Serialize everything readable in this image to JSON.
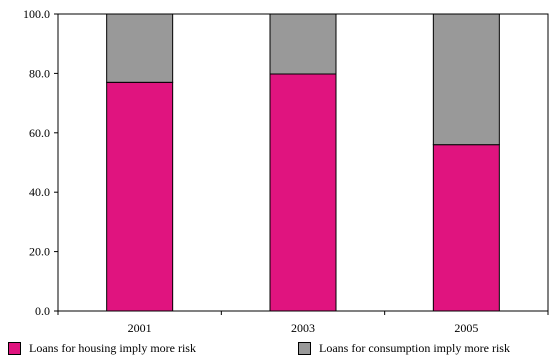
{
  "chart_data": {
    "type": "bar",
    "stacked": true,
    "categories": [
      "2001",
      "2003",
      "2005"
    ],
    "series": [
      {
        "name": "Loans for housing imply more risk",
        "values": [
          77.0,
          79.8,
          56.0
        ],
        "color": "#e0147f"
      },
      {
        "name": "Loans for consumption imply more risk",
        "values": [
          23.0,
          20.2,
          44.0
        ],
        "color": "#999999"
      }
    ],
    "yticks": [
      "0.0",
      "20.0",
      "40.0",
      "60.0",
      "80.0",
      "100.0"
    ],
    "ylim": [
      0,
      100
    ],
    "grid": false,
    "legend_position": "bottom",
    "title": "",
    "xlabel": "",
    "ylabel": ""
  }
}
